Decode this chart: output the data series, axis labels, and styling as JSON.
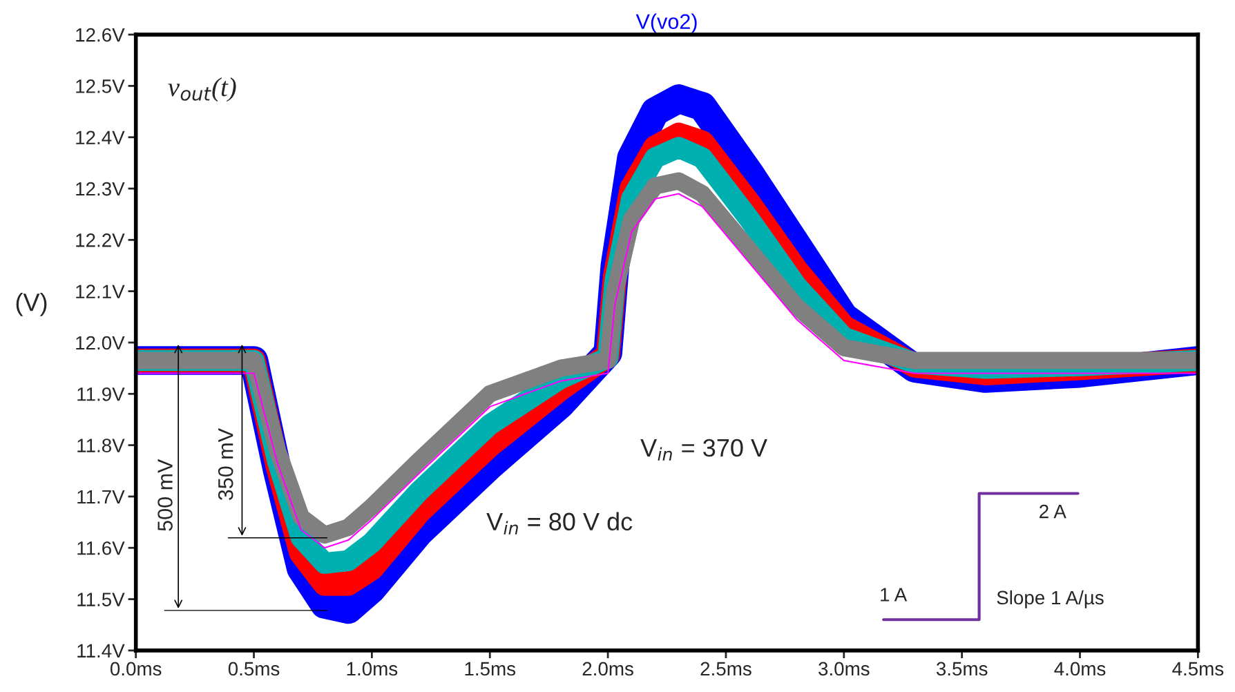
{
  "chart_data": {
    "type": "line",
    "title": "V(vo2)",
    "ylabel": "(V)",
    "x": [
      0,
      0.5,
      0.6,
      0.7,
      0.8,
      0.9,
      1.0,
      1.2,
      1.5,
      1.8,
      2.0,
      2.03,
      2.1,
      2.2,
      2.3,
      2.4,
      2.6,
      2.8,
      3.0,
      3.3,
      3.6,
      4.0,
      4.5
    ],
    "series": [
      {
        "color": "#0000ff",
        "values": [
          11.965,
          11.965,
          11.75,
          11.56,
          11.49,
          11.48,
          11.52,
          11.63,
          11.76,
          11.88,
          11.98,
          12.15,
          12.36,
          12.45,
          12.475,
          12.46,
          12.33,
          12.19,
          12.05,
          11.95,
          11.93,
          11.94,
          11.965
        ]
      },
      {
        "color": "#ff0000",
        "values": [
          11.965,
          11.965,
          11.76,
          11.59,
          11.53,
          11.53,
          11.56,
          11.67,
          11.8,
          11.91,
          11.975,
          12.13,
          12.3,
          12.38,
          12.405,
          12.39,
          12.27,
          12.14,
          12.03,
          11.955,
          11.94,
          11.95,
          11.965
        ]
      },
      {
        "color": "#00b0b0",
        "values": [
          11.965,
          11.965,
          11.77,
          11.62,
          11.57,
          11.575,
          11.61,
          11.71,
          11.84,
          11.93,
          11.97,
          12.12,
          12.28,
          12.36,
          12.38,
          12.36,
          12.24,
          12.11,
          12.01,
          11.96,
          11.95,
          11.955,
          11.965
        ]
      },
      {
        "color": "#808080",
        "values": [
          11.965,
          11.965,
          11.79,
          11.66,
          11.625,
          11.64,
          11.68,
          11.77,
          11.9,
          11.95,
          11.965,
          12.1,
          12.24,
          12.305,
          12.315,
          12.29,
          12.18,
          12.07,
          11.99,
          11.965,
          11.965,
          11.965,
          11.965
        ]
      },
      {
        "color": "#ff00ff",
        "values": [
          11.94,
          11.94,
          11.765,
          11.635,
          11.6,
          11.615,
          11.655,
          11.745,
          11.875,
          11.925,
          11.94,
          12.075,
          12.215,
          12.28,
          12.29,
          12.265,
          12.155,
          12.045,
          11.965,
          11.94,
          11.94,
          11.94,
          11.94
        ]
      }
    ],
    "xlim": [
      0,
      4.5
    ],
    "ylim": [
      11.4,
      12.6
    ],
    "xticks": [
      {
        "value": 0,
        "label": "0.0ms"
      },
      {
        "value": 0.5,
        "label": "0.5ms"
      },
      {
        "value": 1.0,
        "label": "1.0ms"
      },
      {
        "value": 1.5,
        "label": "1.5ms"
      },
      {
        "value": 2.0,
        "label": "2.0ms"
      },
      {
        "value": 2.5,
        "label": "2.5ms"
      },
      {
        "value": 3.0,
        "label": "3.0ms"
      },
      {
        "value": 3.5,
        "label": "3.5ms"
      },
      {
        "value": 4.0,
        "label": "4.0ms"
      },
      {
        "value": 4.5,
        "label": "4.5ms"
      }
    ],
    "yticks": [
      {
        "value": 11.4,
        "label": "11.4V"
      },
      {
        "value": 11.5,
        "label": "11.5V"
      },
      {
        "value": 11.6,
        "label": "11.6V"
      },
      {
        "value": 11.7,
        "label": "11.7V"
      },
      {
        "value": 11.8,
        "label": "11.8V"
      },
      {
        "value": 11.9,
        "label": "11.9V"
      },
      {
        "value": 12.0,
        "label": "12.0V"
      },
      {
        "value": 12.1,
        "label": "12.1V"
      },
      {
        "value": 12.2,
        "label": "12.2V"
      },
      {
        "value": 12.3,
        "label": "12.3V"
      },
      {
        "value": 12.4,
        "label": "12.4V"
      },
      {
        "value": 12.5,
        "label": "12.5V"
      },
      {
        "value": 12.6,
        "label": "12.6V"
      }
    ],
    "grid": false,
    "annotations": [
      "v$_{out}$(t)",
      "V$_{in}$ = 370 V",
      "V$_{in}$ = 80 V dc",
      "500 mV",
      "350 mV",
      "1 A",
      "2 A",
      "Slope 1 A/µs"
    ]
  }
}
